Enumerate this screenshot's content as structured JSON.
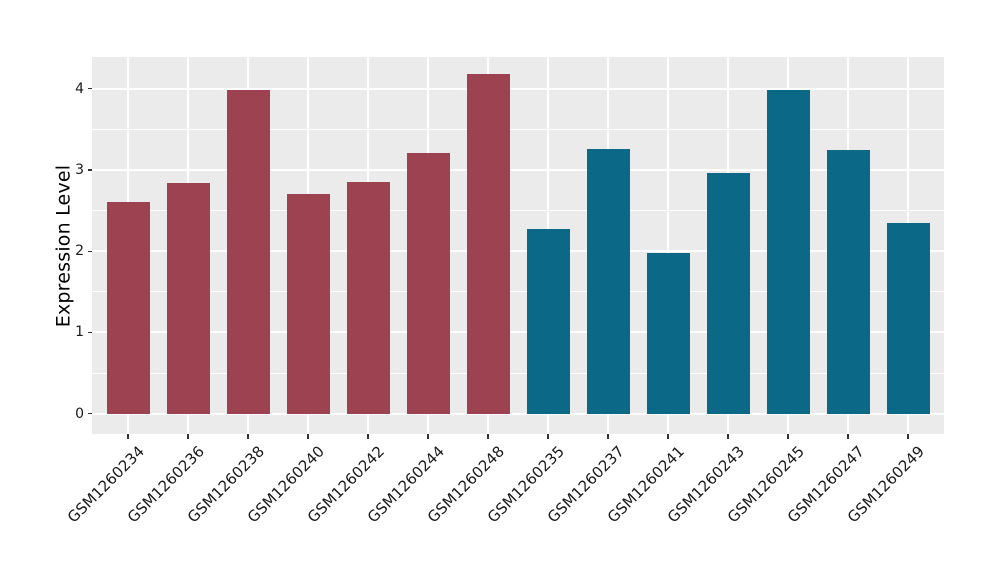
{
  "chart_data": {
    "type": "bar",
    "title": "",
    "xlabel": "",
    "ylabel": "Expression Level",
    "categories": [
      "GSM1260234",
      "GSM1260236",
      "GSM1260238",
      "GSM1260240",
      "GSM1260242",
      "GSM1260244",
      "GSM1260248",
      "GSM1260235",
      "GSM1260237",
      "GSM1260241",
      "GSM1260243",
      "GSM1260245",
      "GSM1260247",
      "GSM1260249"
    ],
    "values": [
      2.61,
      2.84,
      3.98,
      2.71,
      2.85,
      3.21,
      4.18,
      2.27,
      3.26,
      1.98,
      2.96,
      3.99,
      3.25,
      2.35
    ],
    "bar_colors": [
      "#9C4251",
      "#9C4251",
      "#9C4251",
      "#9C4251",
      "#9C4251",
      "#9C4251",
      "#9C4251",
      "#0C6887",
      "#0C6887",
      "#0C6887",
      "#0C6887",
      "#0C6887",
      "#0C6887",
      "#0C6887"
    ],
    "yticks": [
      0,
      1,
      2,
      3,
      4
    ],
    "ylim": [
      -0.25,
      4.39
    ],
    "grid": {
      "major": true,
      "minor": true
    },
    "legend": "none",
    "style": {
      "figure_background": "#FFFFFF",
      "panel_background": "#EBEBEB",
      "grid_major_color": "#FFFFFF",
      "grid_minor_color": "#FFFFFF",
      "tick_mark_color": "#333333",
      "axis_text_color": "#1A1A1A",
      "axis_title_color": "#000000",
      "group_colors": {
        "left-group": "#9C4251",
        "right-group": "#0C6887"
      }
    }
  }
}
